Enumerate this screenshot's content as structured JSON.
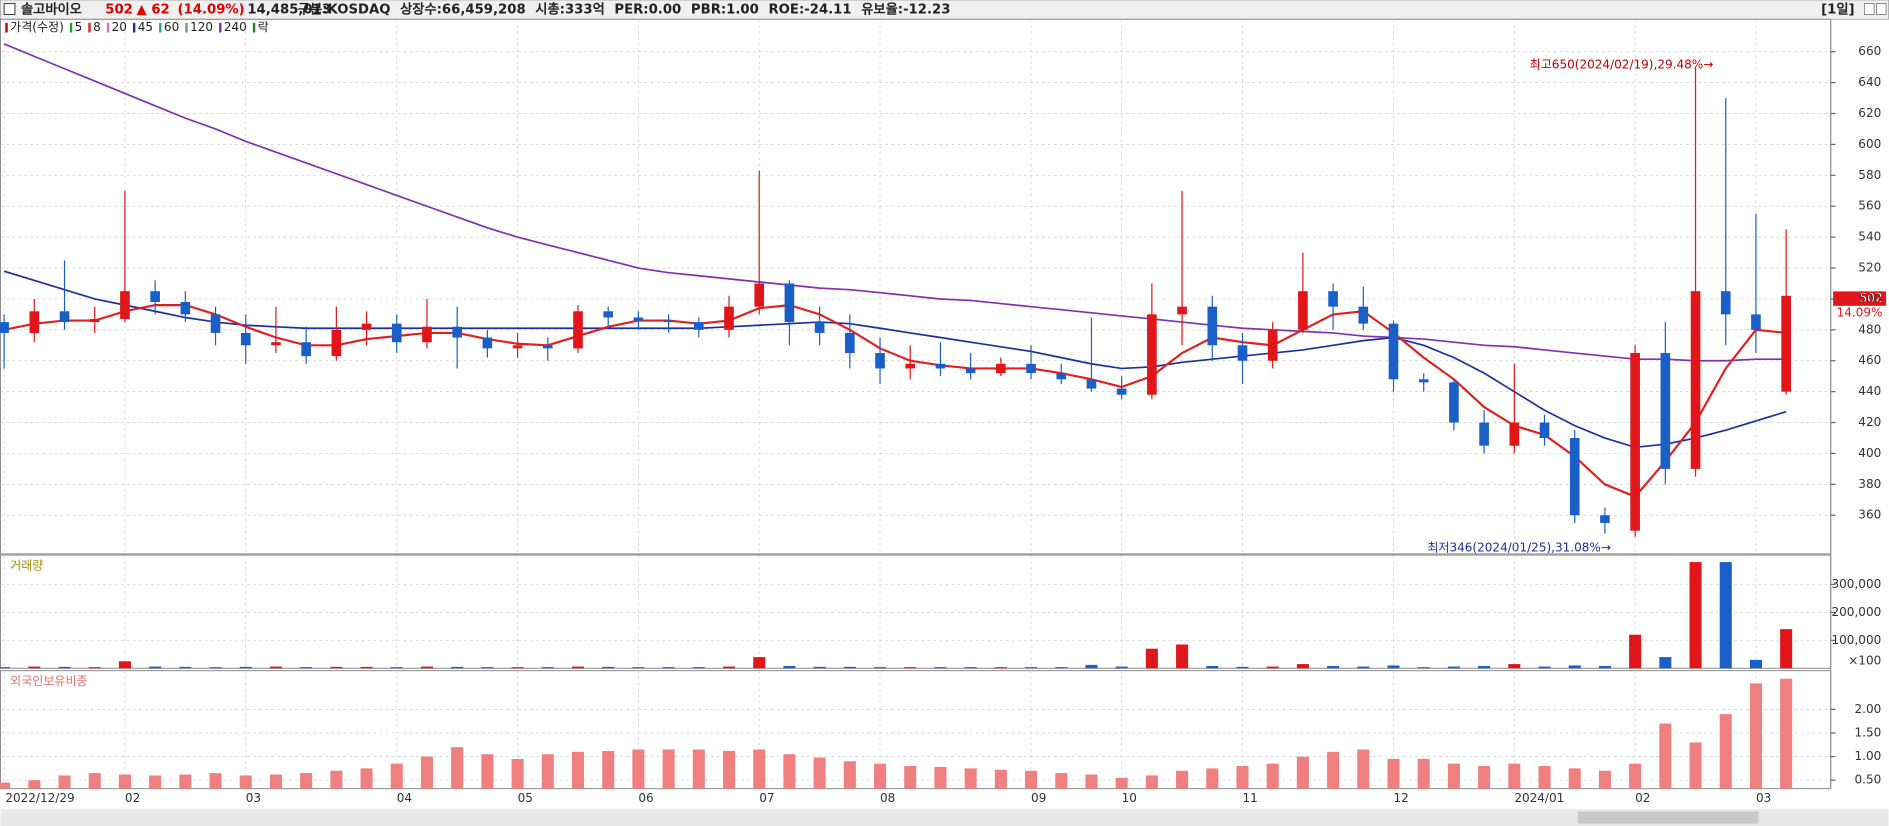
{
  "header": {
    "name": "솔고바이오",
    "price": 502,
    "change": "▲ 62",
    "change_pct": "(14.09%)",
    "volume": "14,485,013",
    "fields": [
      "구분:KOSDAQ",
      "상장수:66,459,208",
      "시총:333억",
      "PER:0.00",
      "PBR:1.00",
      "ROE:-24.11",
      "유보율:-12.23"
    ],
    "period": "[1일]"
  },
  "chart_data": [
    {
      "type": "candlestick",
      "legend": [
        {
          "name": "가격(수정)",
          "color": "#c00000"
        },
        {
          "name": "5",
          "color": "#22a022"
        },
        {
          "name": "8",
          "color": "#e02020"
        },
        {
          "name": "20",
          "color": "#d070c0"
        },
        {
          "name": "45",
          "color": "#1c2fa0"
        },
        {
          "name": "60",
          "color": "#2aa0a0"
        },
        {
          "name": "120",
          "color": "#70a070"
        },
        {
          "name": "240",
          "color": "#8030b0"
        },
        {
          "name": "락",
          "color": "#208020"
        }
      ],
      "categories": [
        "2022/12/29",
        null,
        null,
        null,
        "02",
        null,
        null,
        null,
        "03",
        null,
        null,
        null,
        null,
        "04",
        null,
        null,
        null,
        "05",
        null,
        null,
        null,
        "06",
        null,
        null,
        null,
        "07",
        null,
        null,
        null,
        "08",
        null,
        null,
        null,
        null,
        "09",
        null,
        null,
        "10",
        null,
        null,
        null,
        "11",
        null,
        null,
        null,
        null,
        "12",
        null,
        null,
        null,
        "2024/01",
        null,
        null,
        null,
        "02",
        null,
        null,
        null,
        "03",
        null
      ],
      "open": [
        485,
        478,
        492,
        485,
        487,
        505,
        498,
        490,
        478,
        470,
        472,
        463,
        480,
        484,
        472,
        482,
        475,
        468,
        470,
        468,
        492,
        488,
        486,
        485,
        480,
        495,
        510,
        485,
        478,
        465,
        455,
        458,
        455,
        452,
        458,
        452,
        448,
        442,
        438,
        490,
        495,
        470,
        460,
        480,
        505,
        495,
        484,
        448,
        446,
        420,
        405,
        420,
        410,
        360,
        350,
        465,
        390,
        505,
        490,
        440
      ],
      "high": [
        490,
        500,
        525,
        495,
        570,
        512,
        505,
        495,
        490,
        495,
        482,
        495,
        492,
        490,
        500,
        495,
        480,
        478,
        475,
        496,
        495,
        492,
        490,
        488,
        502,
        583,
        512,
        495,
        490,
        475,
        470,
        472,
        465,
        462,
        470,
        458,
        488,
        450,
        510,
        570,
        502,
        478,
        485,
        530,
        510,
        508,
        486,
        452,
        448,
        428,
        458,
        425,
        415,
        365,
        470,
        485,
        650,
        630,
        555,
        545
      ],
      "low": [
        455,
        472,
        480,
        478,
        485,
        490,
        485,
        470,
        458,
        465,
        458,
        460,
        470,
        465,
        468,
        455,
        462,
        462,
        460,
        465,
        482,
        480,
        478,
        475,
        475,
        490,
        470,
        470,
        455,
        445,
        448,
        450,
        448,
        450,
        448,
        445,
        440,
        435,
        435,
        470,
        460,
        445,
        455,
        478,
        480,
        480,
        440,
        440,
        415,
        400,
        400,
        405,
        355,
        348,
        346,
        380,
        385,
        470,
        465,
        438
      ],
      "close": [
        478,
        492,
        485,
        487,
        505,
        498,
        490,
        478,
        470,
        472,
        463,
        480,
        484,
        472,
        482,
        475,
        468,
        470,
        468,
        492,
        488,
        486,
        485,
        480,
        495,
        510,
        485,
        478,
        465,
        455,
        458,
        455,
        452,
        458,
        452,
        448,
        442,
        438,
        490,
        495,
        470,
        460,
        480,
        505,
        495,
        484,
        448,
        446,
        420,
        405,
        420,
        410,
        360,
        355,
        465,
        390,
        505,
        490,
        480,
        502
      ],
      "up_color": "#e0161a",
      "down_color": "#1a5fc8",
      "moving_averages": [
        {
          "color": "#8030b0",
          "values": [
            665,
            657,
            649,
            641,
            633,
            625,
            617,
            610,
            602,
            595,
            588,
            581,
            574,
            567,
            560,
            553,
            546,
            540,
            535,
            530,
            525,
            520,
            517,
            515,
            513,
            511,
            509,
            507,
            506,
            504,
            502,
            500,
            499,
            497,
            495,
            493,
            491,
            489,
            487,
            485,
            483,
            481,
            480,
            479,
            478,
            476,
            475,
            474,
            472,
            470,
            469,
            467,
            465,
            463,
            461,
            461,
            460,
            460,
            461,
            461
          ]
        },
        {
          "color": "#1c2fa0",
          "values": [
            518,
            512,
            506,
            500,
            496,
            492,
            488,
            485,
            483,
            482,
            481,
            481,
            481,
            481,
            481,
            481,
            481,
            481,
            481,
            481,
            481,
            481,
            481,
            481,
            482,
            483,
            484,
            485,
            484,
            481,
            478,
            475,
            472,
            469,
            466,
            462,
            458,
            455,
            456,
            459,
            461,
            463,
            465,
            467,
            470,
            473,
            475,
            470,
            462,
            452,
            440,
            428,
            418,
            410,
            404,
            406,
            410,
            415,
            421,
            427
          ]
        },
        {
          "color": "#e02020",
          "values": [
            480,
            484,
            486,
            486,
            492,
            496,
            496,
            490,
            482,
            475,
            470,
            470,
            474,
            476,
            478,
            478,
            474,
            471,
            470,
            476,
            482,
            486,
            486,
            484,
            486,
            494,
            496,
            490,
            480,
            468,
            460,
            457,
            455,
            455,
            455,
            452,
            448,
            443,
            450,
            465,
            475,
            472,
            470,
            480,
            490,
            492,
            478,
            462,
            448,
            430,
            418,
            412,
            398,
            380,
            372,
            395,
            420,
            455,
            480,
            478
          ]
        }
      ],
      "ylim": [
        335,
        681
      ],
      "yticks": [
        360,
        380,
        400,
        420,
        440,
        460,
        480,
        500,
        520,
        540,
        560,
        580,
        600,
        620,
        640,
        660
      ],
      "annotations": [
        "최고650(2024/02/19),29.48%→",
        "최저346(2024/01/25),31.08%→"
      ],
      "last_pct": "14.09%"
    },
    {
      "type": "bar",
      "title": "거래량",
      "unit_label": "×100",
      "values": [
        4000,
        6000,
        5000,
        4000,
        25000,
        6000,
        5000,
        4000,
        5000,
        6000,
        4000,
        5000,
        5000,
        4000,
        6000,
        5000,
        4000,
        4000,
        4000,
        6000,
        5000,
        4000,
        4000,
        4000,
        6000,
        40000,
        8000,
        5000,
        5000,
        4000,
        4000,
        4000,
        4000,
        4000,
        4000,
        4000,
        12000,
        6000,
        70000,
        85000,
        8000,
        5000,
        6000,
        15000,
        8000,
        6000,
        10000,
        4000,
        6000,
        8000,
        15000,
        6000,
        10000,
        8000,
        120000,
        40000,
        380000,
        380000,
        30000,
        140000
      ],
      "ylim": [
        0,
        405000
      ],
      "yticks": [
        {
          "value": 100000,
          "label": "100,000"
        },
        {
          "value": 200000,
          "label": "200,000"
        },
        {
          "value": 300000,
          "label": "300,000"
        }
      ]
    },
    {
      "type": "bar",
      "title": "외국인보유비중",
      "color": "#f08080",
      "values": [
        0.45,
        0.5,
        0.6,
        0.65,
        0.62,
        0.6,
        0.62,
        0.65,
        0.6,
        0.62,
        0.65,
        0.7,
        0.75,
        0.85,
        1.0,
        1.2,
        1.05,
        0.95,
        1.05,
        1.1,
        1.12,
        1.15,
        1.15,
        1.15,
        1.12,
        1.15,
        1.05,
        0.98,
        0.9,
        0.85,
        0.8,
        0.78,
        0.75,
        0.72,
        0.7,
        0.65,
        0.62,
        0.55,
        0.6,
        0.7,
        0.75,
        0.8,
        0.85,
        1.0,
        1.1,
        1.15,
        0.95,
        0.95,
        0.85,
        0.8,
        0.85,
        0.8,
        0.75,
        0.7,
        0.85,
        1.7,
        1.3,
        1.9,
        2.55,
        2.65
      ],
      "ylim": [
        0.32,
        2.82
      ],
      "yticks": [
        {
          "value": 0.5,
          "label": "0.50"
        },
        {
          "value": 1,
          "label": "1.00"
        },
        {
          "value": 1.5,
          "label": "1.50"
        },
        {
          "value": 2,
          "label": "2.00"
        }
      ]
    }
  ]
}
